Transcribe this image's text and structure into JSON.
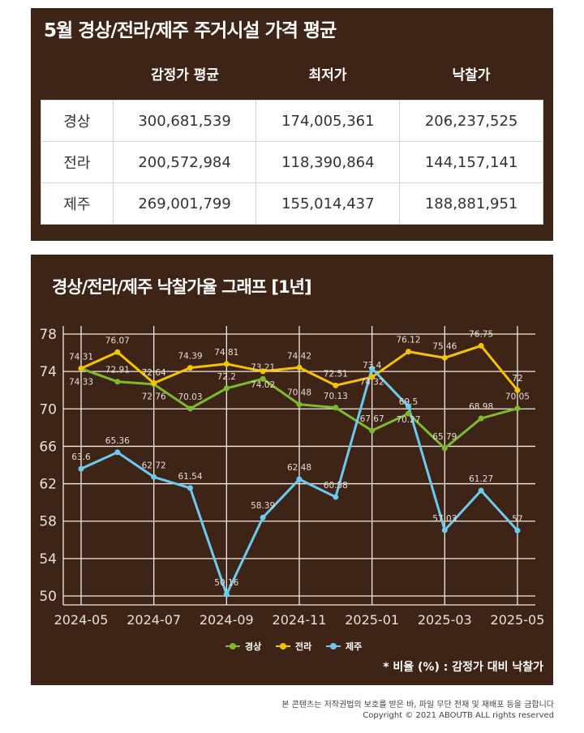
{
  "table_section": {
    "title": "5월 경상/전라/제주 주거시설 가격 평균",
    "headers": [
      "",
      "감정가 평균",
      "최저가",
      "낙찰가"
    ],
    "rows": [
      {
        "region": "경상",
        "appraisal": "300,681,539",
        "minimum": "174,005,361",
        "winning": "206,237,525"
      },
      {
        "region": "전라",
        "appraisal": "200,572,984",
        "minimum": "118,390,864",
        "winning": "144,157,141"
      },
      {
        "region": "제주",
        "appraisal": "269,001,799",
        "minimum": "155,014,437",
        "winning": "188,881,951"
      }
    ]
  },
  "chart_section": {
    "note": "* 비율 (%) : 감정가 대비 낙찰가"
  },
  "chart_data": {
    "type": "line",
    "title": "경상/전라/제주 낙찰가율 그래프 [1년]",
    "x": [
      "2024-05",
      "2024-06",
      "2024-07",
      "2024-08",
      "2024-09",
      "2024-10",
      "2024-11",
      "2024-12",
      "2025-01",
      "2025-02",
      "2025-03",
      "2025-04",
      "2025-05"
    ],
    "x_tick_labels": [
      "2024-05",
      "2024-07",
      "2024-09",
      "2024-11",
      "2025-01",
      "2025-03",
      "2025-05"
    ],
    "y_ticks": [
      50,
      54,
      58,
      62,
      66,
      70,
      74,
      78
    ],
    "ylim": [
      49,
      79
    ],
    "grid": true,
    "legend_position": "bottom",
    "series": [
      {
        "name": "경상",
        "color": "#7cbb2e",
        "values": [
          74.31,
          72.91,
          72.64,
          70.03,
          72.2,
          73.21,
          70.48,
          70.13,
          67.67,
          69.5,
          65.79,
          68.98,
          70.05
        ]
      },
      {
        "name": "전라",
        "color": "#f5c400",
        "values": [
          74.33,
          76.07,
          72.76,
          74.39,
          74.81,
          74.02,
          74.42,
          72.51,
          73.4,
          76.12,
          75.46,
          76.75,
          72
        ]
      },
      {
        "name": "제주",
        "color": "#6ccaf0",
        "values": [
          63.6,
          65.36,
          62.72,
          61.54,
          50.16,
          58.39,
          62.48,
          60.58,
          74.32,
          70.27,
          57.03,
          61.27,
          57
        ]
      }
    ]
  },
  "footer": {
    "line1": "본 콘텐츠는 저작권법의 보호를 받은 바, 파일 무단 전재 및 재배포 등을 금합니다",
    "line2": "Copyright © 2021 ABOUTB ALL rights reserved"
  }
}
